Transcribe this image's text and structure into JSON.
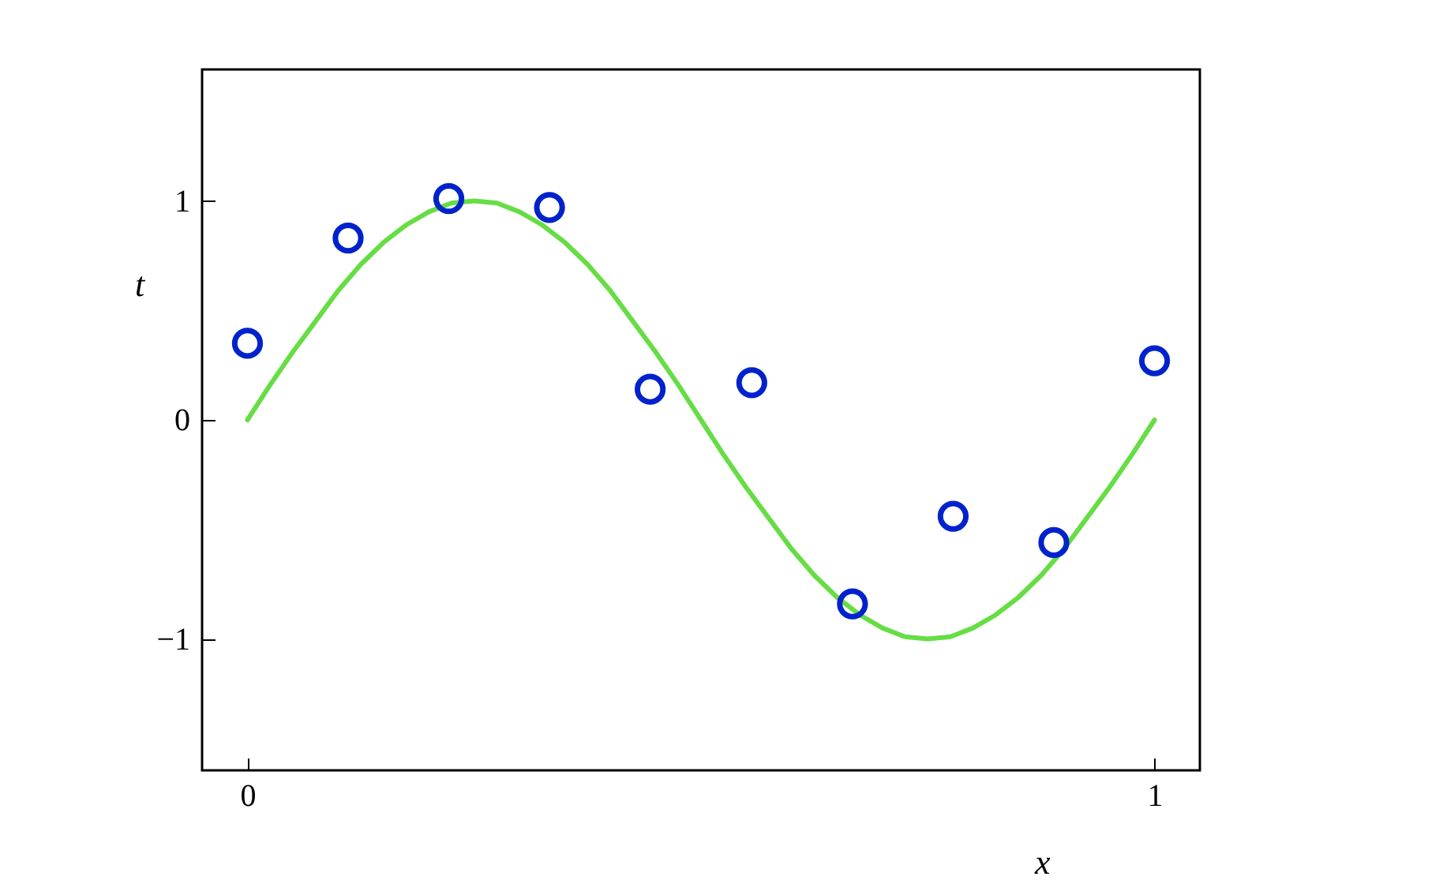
{
  "chart_data": {
    "type": "scatter",
    "xlabel": "x",
    "ylabel": "t",
    "xlim": [
      -0.05,
      1.05
    ],
    "ylim": [
      -1.6,
      1.6
    ],
    "xticks": [
      0,
      1
    ],
    "yticks": [
      -1,
      0,
      1
    ],
    "series": [
      {
        "type": "line",
        "color": "#66dd44",
        "marker": "none",
        "x": [
          0,
          0.025,
          0.05,
          0.075,
          0.1,
          0.125,
          0.15,
          0.175,
          0.2,
          0.225,
          0.25,
          0.275,
          0.3,
          0.325,
          0.35,
          0.375,
          0.4,
          0.425,
          0.45,
          0.475,
          0.5,
          0.525,
          0.55,
          0.575,
          0.6,
          0.625,
          0.65,
          0.675,
          0.7,
          0.725,
          0.75,
          0.775,
          0.8,
          0.825,
          0.85,
          0.875,
          0.9,
          0.925,
          0.95,
          0.975,
          1
        ],
        "values": [
          0,
          0.16,
          0.31,
          0.45,
          0.59,
          0.71,
          0.81,
          0.89,
          0.95,
          0.99,
          1,
          0.99,
          0.95,
          0.89,
          0.81,
          0.71,
          0.59,
          0.45,
          0.31,
          0.16,
          0,
          -0.16,
          -0.31,
          -0.45,
          -0.59,
          -0.71,
          -0.81,
          -0.89,
          -0.95,
          -0.99,
          -1,
          -0.99,
          -0.95,
          -0.89,
          -0.81,
          -0.71,
          -0.59,
          -0.45,
          -0.31,
          -0.16,
          0
        ]
      },
      {
        "color": "#0022cc",
        "marker": "circle",
        "x": [
          0,
          0.111,
          0.222,
          0.333,
          0.444,
          0.556,
          0.667,
          0.778,
          0.889,
          1
        ],
        "values": [
          0.35,
          0.83,
          1.01,
          0.97,
          0.14,
          0.17,
          -0.84,
          -0.44,
          -0.56,
          0.27
        ]
      }
    ]
  }
}
